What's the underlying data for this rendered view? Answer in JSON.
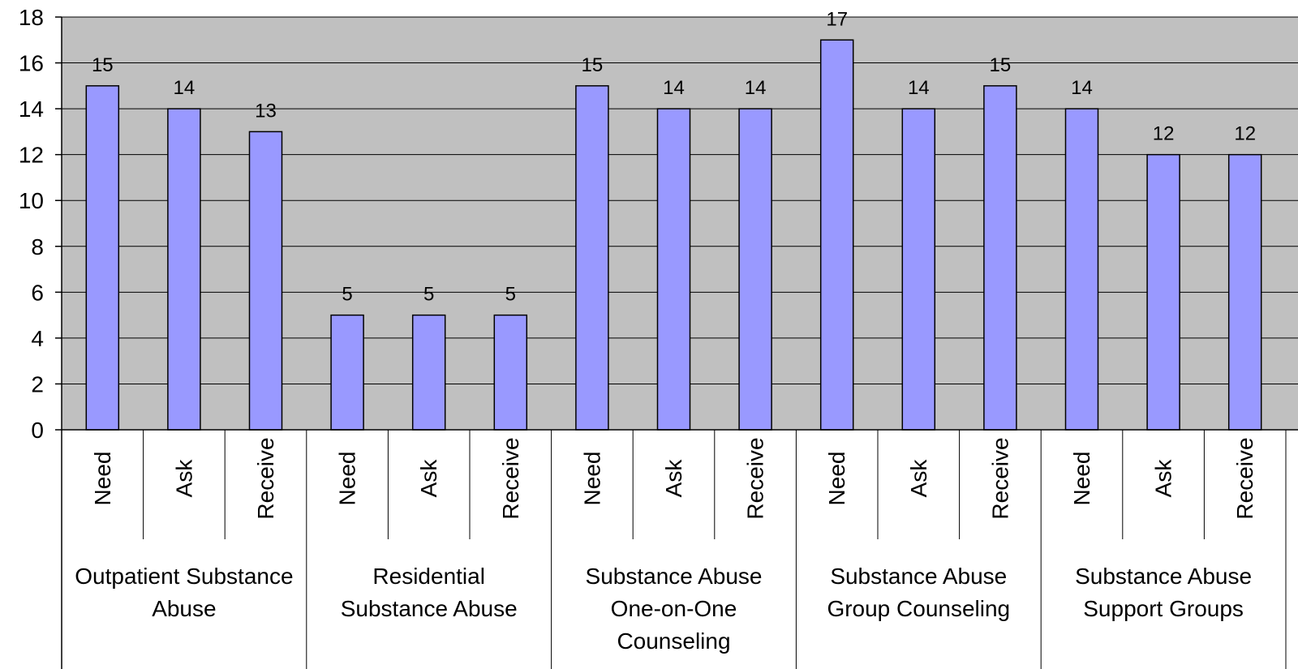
{
  "chart_data": {
    "type": "bar",
    "ylim": [
      0,
      18
    ],
    "y_ticks": [
      0,
      2,
      4,
      6,
      8,
      10,
      12,
      14,
      16,
      18
    ],
    "grid": true,
    "colors": {
      "plot_background": "#c0c0c0",
      "bar_fill": "#9999ff",
      "bar_stroke": "#000000",
      "grid": "#000000"
    },
    "groups": [
      {
        "label_lines": [
          "Outpatient Substance",
          "Abuse"
        ],
        "bars": [
          {
            "label": "Need",
            "value": 15
          },
          {
            "label": "Ask",
            "value": 14
          },
          {
            "label": "Receive",
            "value": 13
          }
        ]
      },
      {
        "label_lines": [
          "Residential",
          "Substance Abuse"
        ],
        "bars": [
          {
            "label": "Need",
            "value": 5
          },
          {
            "label": "Ask",
            "value": 5
          },
          {
            "label": "Receive",
            "value": 5
          }
        ]
      },
      {
        "label_lines": [
          "Substance Abuse",
          "One-on-One",
          "Counseling"
        ],
        "bars": [
          {
            "label": "Need",
            "value": 15
          },
          {
            "label": "Ask",
            "value": 14
          },
          {
            "label": "Receive",
            "value": 14
          }
        ]
      },
      {
        "label_lines": [
          "Substance Abuse",
          "Group Counseling"
        ],
        "bars": [
          {
            "label": "Need",
            "value": 17
          },
          {
            "label": "Ask",
            "value": 14
          },
          {
            "label": "Receive",
            "value": 15
          }
        ]
      },
      {
        "label_lines": [
          "Substance Abuse",
          "Support Groups"
        ],
        "bars": [
          {
            "label": "Need",
            "value": 14
          },
          {
            "label": "Ask",
            "value": 12
          },
          {
            "label": "Receive",
            "value": 12
          }
        ]
      }
    ]
  }
}
